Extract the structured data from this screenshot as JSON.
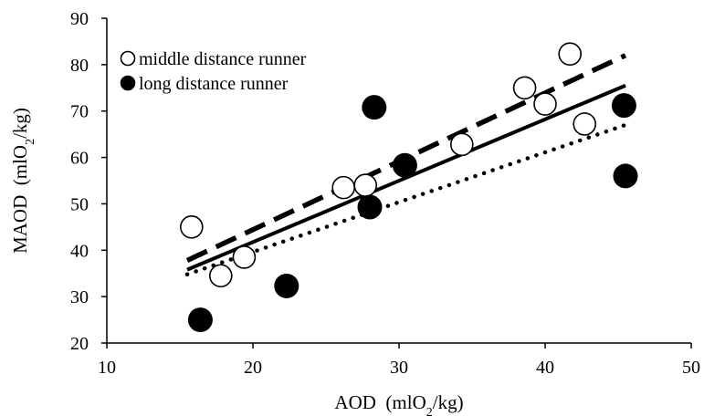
{
  "chart_data": {
    "type": "scatter",
    "title": "",
    "xlabel": {
      "main": "AOD",
      "unit_pre": "(mlO",
      "unit_sub": "2",
      "unit_post": "/kg)"
    },
    "ylabel": {
      "main": "MAOD",
      "unit_pre": "(mlO",
      "unit_sub": "2",
      "unit_post": "/kg)"
    },
    "xlim": [
      10,
      50
    ],
    "ylim": [
      20,
      90
    ],
    "xticks": [
      "10",
      "20",
      "30",
      "40",
      "50"
    ],
    "yticks": [
      "20",
      "30",
      "40",
      "50",
      "60",
      "70",
      "80",
      "90"
    ],
    "grid": false,
    "legend_position": "top-left",
    "series": [
      {
        "name": "middle distance runner",
        "marker": "open-circle",
        "points": [
          {
            "x": 15.8,
            "y": 45.0
          },
          {
            "x": 17.8,
            "y": 34.5
          },
          {
            "x": 19.4,
            "y": 38.5
          },
          {
            "x": 26.2,
            "y": 53.5
          },
          {
            "x": 27.7,
            "y": 54.0
          },
          {
            "x": 34.3,
            "y": 62.8
          },
          {
            "x": 38.6,
            "y": 75.0
          },
          {
            "x": 40.0,
            "y": 71.5
          },
          {
            "x": 41.7,
            "y": 82.3
          },
          {
            "x": 42.7,
            "y": 67.2
          }
        ],
        "fit": {
          "style": "dashed",
          "from": [
            15.5,
            37.8
          ],
          "to": [
            45.5,
            82.0
          ]
        }
      },
      {
        "name": "long distance runner",
        "marker": "filled-circle",
        "points": [
          {
            "x": 16.4,
            "y": 25.0
          },
          {
            "x": 22.3,
            "y": 32.3
          },
          {
            "x": 28.0,
            "y": 49.3
          },
          {
            "x": 28.3,
            "y": 70.8
          },
          {
            "x": 30.4,
            "y": 58.3
          },
          {
            "x": 45.4,
            "y": 71.2
          },
          {
            "x": 45.5,
            "y": 56.0
          }
        ],
        "fit": {
          "style": "dotted",
          "from": [
            15.5,
            34.8
          ],
          "to": [
            45.5,
            67.0
          ]
        }
      }
    ],
    "overall_fit": {
      "style": "solid",
      "from": [
        15.5,
        35.8
      ],
      "to": [
        45.5,
        75.5
      ]
    }
  }
}
